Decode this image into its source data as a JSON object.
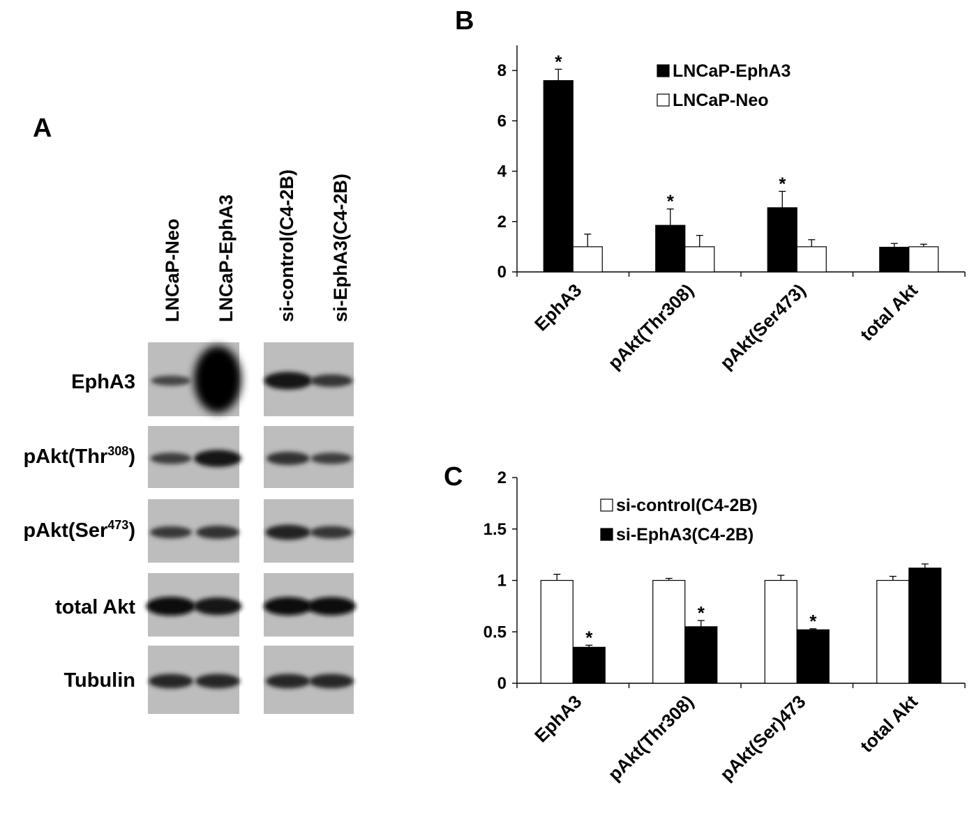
{
  "panel_a": {
    "letter": "A",
    "lanes_left": [
      "LNCaP-Neo",
      "LNCaP-EphA3"
    ],
    "lanes_right": [
      "si-control(C4-2B)",
      "si-EphA3(C4-2B)"
    ],
    "rows": [
      {
        "label": "EphA3",
        "sup": ""
      },
      {
        "label": "pAkt(Thr",
        "sup": "308",
        "suffix": ")"
      },
      {
        "label": "pAkt(Ser",
        "sup": "473",
        "suffix": ")"
      },
      {
        "label": "total Akt",
        "sup": ""
      },
      {
        "label": "Tubulin",
        "sup": ""
      }
    ],
    "band_intensity": [
      [
        0.25,
        1.0,
        0.85,
        0.45
      ],
      [
        0.35,
        0.8,
        0.5,
        0.35
      ],
      [
        0.4,
        0.5,
        0.65,
        0.45
      ],
      [
        0.95,
        0.85,
        0.9,
        0.9
      ],
      [
        0.6,
        0.6,
        0.6,
        0.6
      ]
    ]
  },
  "chart_data": [
    {
      "panel": "B",
      "type": "bar",
      "categories": [
        "EphA3",
        "pAkt(Thr308)",
        "pAkt(Ser473)",
        "total Akt"
      ],
      "series": [
        {
          "name": "LNCaP-EphA3",
          "color": "#000000",
          "values": [
            7.6,
            1.85,
            2.55,
            0.98
          ],
          "errors": [
            0.45,
            0.65,
            0.65,
            0.15
          ]
        },
        {
          "name": "LNCaP-Neo",
          "color": "#ffffff",
          "values": [
            1.0,
            1.0,
            1.0,
            1.0
          ],
          "errors": [
            0.5,
            0.45,
            0.28,
            0.1
          ]
        }
      ],
      "significance": [
        "*",
        "*",
        "*",
        ""
      ],
      "yticks": [
        0,
        2,
        4,
        6,
        8
      ],
      "ylim": [
        0,
        9
      ],
      "legend_position": "top-right"
    },
    {
      "panel": "C",
      "type": "bar",
      "categories": [
        "EphA3",
        "pAkt(Thr308)",
        "pAkt(Ser)473",
        "total Akt"
      ],
      "series": [
        {
          "name": "si-control(C4-2B)",
          "color": "#ffffff",
          "values": [
            1.0,
            1.0,
            1.0,
            1.0
          ],
          "errors": [
            0.06,
            0.02,
            0.05,
            0.04
          ]
        },
        {
          "name": "si-EphA3(C4-2B)",
          "color": "#000000",
          "values": [
            0.35,
            0.55,
            0.52,
            1.12
          ],
          "errors": [
            0.02,
            0.06,
            0.01,
            0.04
          ]
        }
      ],
      "significance": [
        "*",
        "*",
        "*",
        ""
      ],
      "yticks": [
        0,
        0.5,
        1,
        1.5,
        2
      ],
      "ylim": [
        0,
        2
      ],
      "legend_position": "top-left"
    }
  ]
}
